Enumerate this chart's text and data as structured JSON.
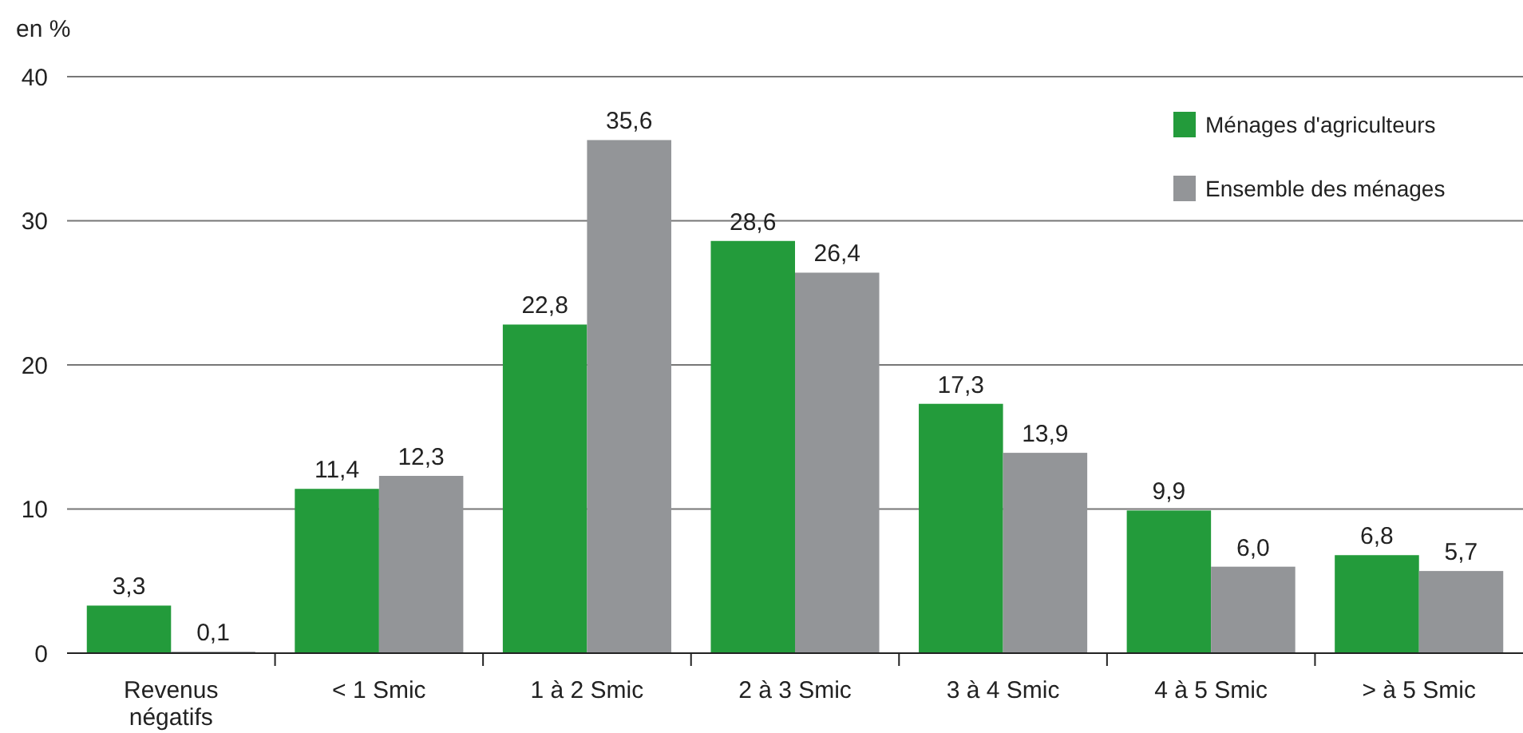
{
  "chart_data": {
    "type": "bar",
    "ylabel": "en %",
    "categories": [
      "Revenus négatifs",
      "< 1 Smic",
      "1 à 2 Smic",
      "2 à 3 Smic",
      "3 à 4 Smic",
      "4 à 5 Smic",
      "> à 5 Smic"
    ],
    "series": [
      {
        "name": "Ménages d'agriculteurs",
        "color": "#239b3b",
        "values": [
          3.3,
          11.4,
          22.8,
          28.6,
          17.3,
          9.9,
          6.8
        ],
        "value_labels": [
          "3,3",
          "11,4",
          "22,8",
          "28,6",
          "17,3",
          "9,9",
          "6,8"
        ]
      },
      {
        "name": "Ensemble des ménages",
        "color": "#939598",
        "values": [
          0.1,
          12.3,
          35.6,
          26.4,
          13.9,
          6.0,
          5.7
        ],
        "value_labels": [
          "0,1",
          "12,3",
          "35,6",
          "26,4",
          "13,9",
          "6,0",
          "5,7"
        ]
      }
    ],
    "ylim": [
      0,
      40
    ],
    "yticks": [
      0,
      10,
      20,
      30,
      40
    ],
    "grid": "y",
    "legend": "top right"
  }
}
